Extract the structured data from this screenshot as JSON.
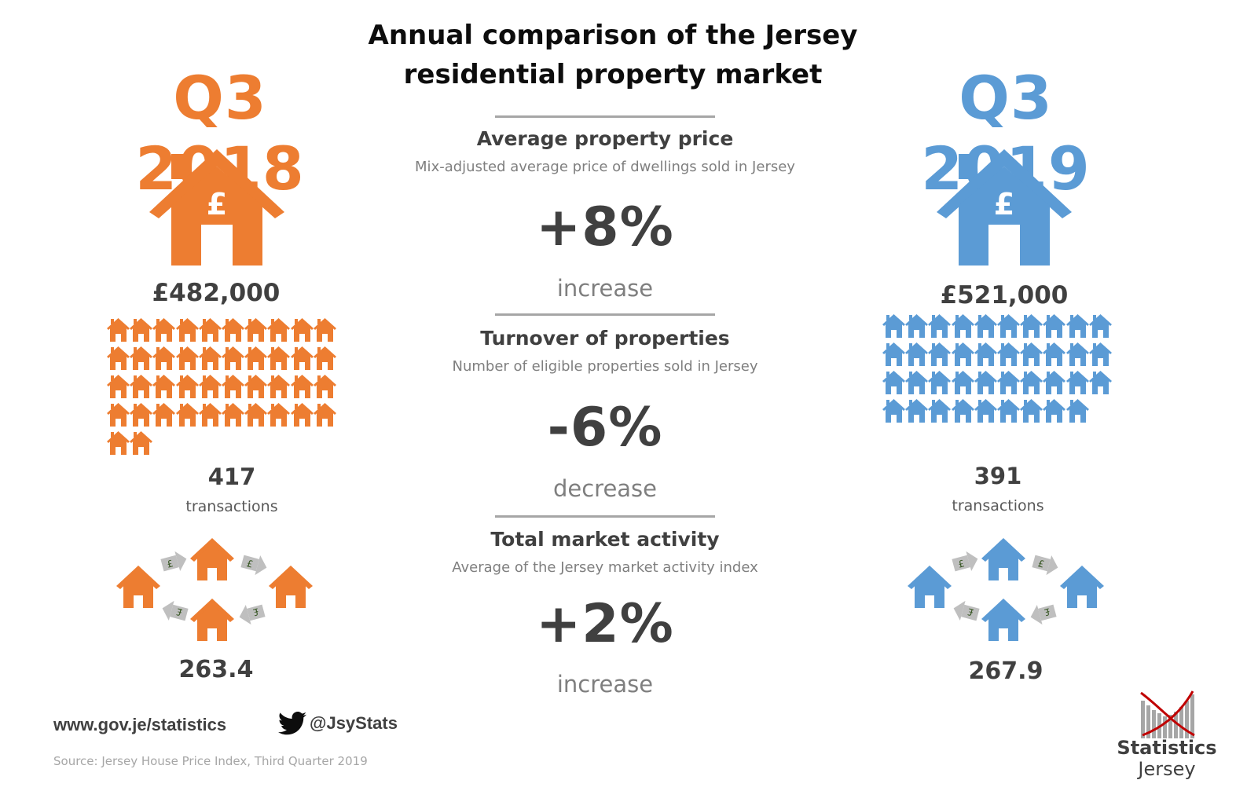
{
  "title_line1": "Annual comparison of the Jersey",
  "title_line2": "residential property market",
  "left": {
    "period": "Q3 2018",
    "color": "#ed7d31",
    "icon": "house-pound-icon",
    "price": "£482,000",
    "house_icon_count": 42,
    "transactions_count": "417",
    "transactions_label": "transactions",
    "activity_index": "263.4"
  },
  "right": {
    "period": "Q3 2019",
    "color": "#5b9bd5",
    "icon": "house-pound-icon",
    "price": "£521,000",
    "house_icon_count": 39,
    "transactions_count": "391",
    "transactions_label": "transactions",
    "activity_index": "267.9"
  },
  "sections": [
    {
      "title": "Average property price",
      "subtitle": "Mix-adjusted average price of dwellings sold in Jersey",
      "change": "+8%",
      "direction": "increase"
    },
    {
      "title": "Turnover of properties",
      "subtitle": "Number of eligible properties sold in Jersey",
      "change": "-6%",
      "direction": "decrease"
    },
    {
      "title": "Total market activity",
      "subtitle": "Average of the Jersey market activity index",
      "change": "+2%",
      "direction": "increase"
    }
  ],
  "footer": {
    "website": "www.gov.je/statistics",
    "twitter_icon": "twitter-bird-icon",
    "twitter_handle": "@JsyStats",
    "source": "Source: Jersey House Price Index, Third Quarter 2019"
  },
  "logo": {
    "line1": "Statistics",
    "line2": "Jersey",
    "accent": "#c00000"
  }
}
